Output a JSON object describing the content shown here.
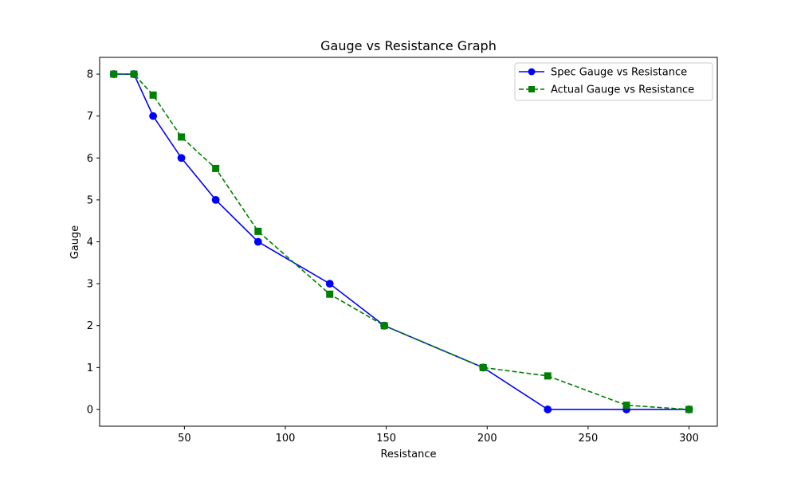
{
  "chart_data": {
    "type": "line",
    "title": "Gauge vs Resistance Graph",
    "xlabel": "Resistance",
    "ylabel": "Gauge",
    "xlim": [
      8,
      314
    ],
    "ylim": [
      -0.4,
      8.4
    ],
    "xticks": [
      50,
      100,
      150,
      200,
      250,
      300
    ],
    "yticks": [
      0,
      1,
      2,
      3,
      4,
      5,
      6,
      7,
      8
    ],
    "grid": false,
    "legend_position": "top-right",
    "series": [
      {
        "name": "Spec Gauge vs Resistance",
        "color": "#0000ff",
        "line_style": "solid",
        "marker": "circle",
        "x": [
          15,
          25,
          34.5,
          48.5,
          65.5,
          86.5,
          122,
          149,
          198,
          230,
          269,
          300
        ],
        "y": [
          8,
          8,
          7,
          6,
          5,
          4,
          3,
          2,
          1,
          0,
          0,
          0
        ]
      },
      {
        "name": "Actual Gauge  vs Resistance",
        "color": "#008000",
        "line_style": "dashed",
        "marker": "square",
        "x": [
          15,
          25,
          34.5,
          48.5,
          65.5,
          86.5,
          122,
          149,
          198,
          230,
          269,
          300
        ],
        "y": [
          8,
          8,
          7.5,
          6.5,
          5.75,
          4.25,
          2.75,
          2,
          1,
          0.8,
          0.1,
          0
        ]
      }
    ]
  }
}
